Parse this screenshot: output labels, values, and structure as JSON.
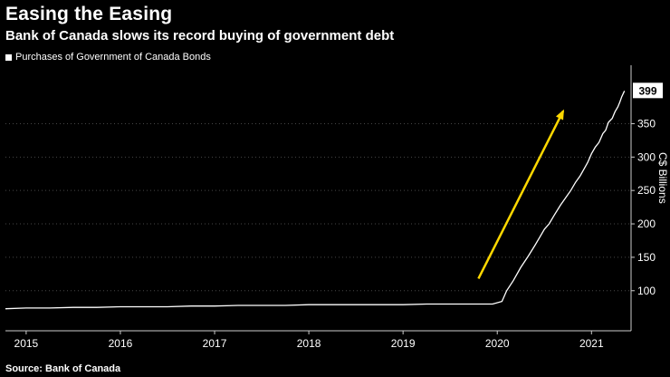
{
  "header": {
    "title": "Easing the Easing",
    "subtitle": "Bank of Canada slows its record buying of government debt"
  },
  "legend": {
    "label": "Purchases of Government of Canada Bonds",
    "marker_color": "#ffffff"
  },
  "source": "Source: Bank of Canada",
  "axes": {
    "y_title": "C$ Billions"
  },
  "colors": {
    "background": "#000000",
    "text": "#ffffff",
    "gridline": "#474747",
    "axis_line": "#cccccc",
    "series": "#ffffff",
    "arrow": "#ffd800",
    "badge_bg": "#ffffff",
    "badge_text": "#000000"
  },
  "chart_data": {
    "type": "line",
    "title": "Easing the Easing",
    "subtitle": "Bank of Canada slows its record buying of government debt",
    "ylabel": "C$ Billions",
    "y_axis_side": "right",
    "grid": "dotted-horizontal",
    "legend_position": "top-left",
    "xlim": [
      2014.78,
      2021.42
    ],
    "ylim": [
      40,
      432
    ],
    "x_ticks": [
      2015,
      2016,
      2017,
      2018,
      2019,
      2020,
      2021
    ],
    "y_ticks": [
      100,
      150,
      200,
      250,
      300,
      350
    ],
    "last_value_label": "399",
    "annotation": {
      "type": "arrow",
      "from": [
        2019.8,
        118
      ],
      "to": [
        2020.7,
        369
      ]
    },
    "series": [
      {
        "name": "Purchases of Government of Canada Bonds",
        "points": [
          [
            2014.78,
            73
          ],
          [
            2015.0,
            74
          ],
          [
            2015.25,
            74
          ],
          [
            2015.5,
            75
          ],
          [
            2015.75,
            75
          ],
          [
            2016.0,
            76
          ],
          [
            2016.25,
            76
          ],
          [
            2016.5,
            76
          ],
          [
            2016.75,
            77
          ],
          [
            2017.0,
            77
          ],
          [
            2017.25,
            78
          ],
          [
            2017.5,
            78
          ],
          [
            2017.75,
            78
          ],
          [
            2018.0,
            79
          ],
          [
            2018.25,
            79
          ],
          [
            2018.5,
            79
          ],
          [
            2018.75,
            79
          ],
          [
            2019.0,
            79
          ],
          [
            2019.25,
            80
          ],
          [
            2019.5,
            80
          ],
          [
            2019.75,
            80
          ],
          [
            2019.95,
            80
          ],
          [
            2020.05,
            84
          ],
          [
            2020.1,
            100
          ],
          [
            2020.17,
            115
          ],
          [
            2020.25,
            135
          ],
          [
            2020.33,
            152
          ],
          [
            2020.4,
            168
          ],
          [
            2020.45,
            180
          ],
          [
            2020.5,
            192
          ],
          [
            2020.55,
            200
          ],
          [
            2020.6,
            212
          ],
          [
            2020.67,
            228
          ],
          [
            2020.72,
            238
          ],
          [
            2020.78,
            250
          ],
          [
            2020.83,
            262
          ],
          [
            2020.88,
            272
          ],
          [
            2020.92,
            282
          ],
          [
            2020.96,
            292
          ],
          [
            2021.0,
            305
          ],
          [
            2021.04,
            315
          ],
          [
            2021.08,
            322
          ],
          [
            2021.12,
            335
          ],
          [
            2021.15,
            340
          ],
          [
            2021.18,
            352
          ],
          [
            2021.22,
            358
          ],
          [
            2021.25,
            368
          ],
          [
            2021.28,
            375
          ],
          [
            2021.3,
            382
          ],
          [
            2021.32,
            390
          ],
          [
            2021.35,
            399
          ]
        ]
      }
    ]
  }
}
